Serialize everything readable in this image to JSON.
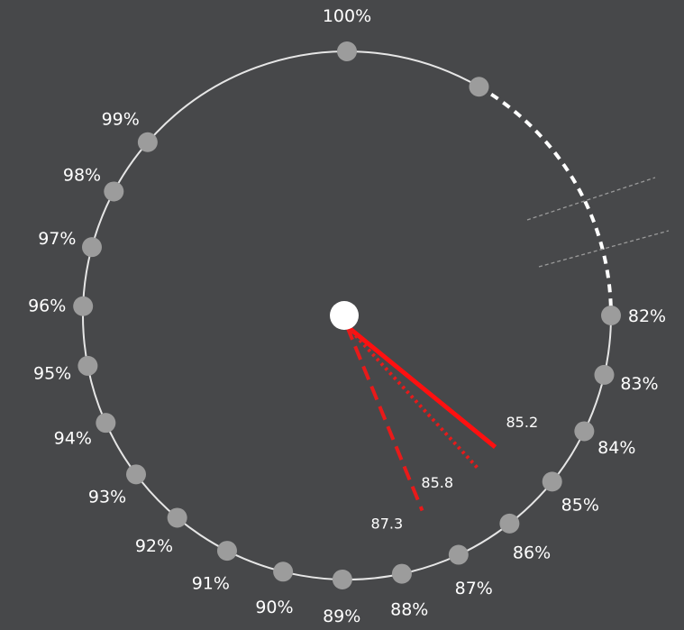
{
  "chart_data": {
    "type": "radial-gauge",
    "ticks": [
      "82%",
      "83%",
      "84%",
      "85%",
      "86%",
      "87%",
      "88%",
      "89%",
      "90%",
      "91%",
      "92%",
      "93%",
      "94%",
      "95%",
      "96%",
      "97%",
      "98%",
      "99%",
      "100%"
    ],
    "tick_values": [
      82,
      83,
      84,
      85,
      86,
      87,
      88,
      89,
      90,
      91,
      92,
      93,
      94,
      95,
      96,
      97,
      98,
      99,
      100
    ],
    "axis_break": true,
    "needles": [
      {
        "label": "85.2",
        "value": 85.2,
        "style": "solid",
        "color": "#ff1010"
      },
      {
        "label": "85.8",
        "value": 85.8,
        "style": "dotted",
        "color": "#e81a1a"
      },
      {
        "label": "87.3",
        "value": 87.3,
        "style": "dashed",
        "color": "#e81a1a"
      }
    ],
    "colors": {
      "background": "#47484a",
      "ring": "#e6e6e6",
      "tick_dot": "#9c9c9c",
      "hub": "#ffffff",
      "break_lines": "#9a9a9a"
    }
  }
}
